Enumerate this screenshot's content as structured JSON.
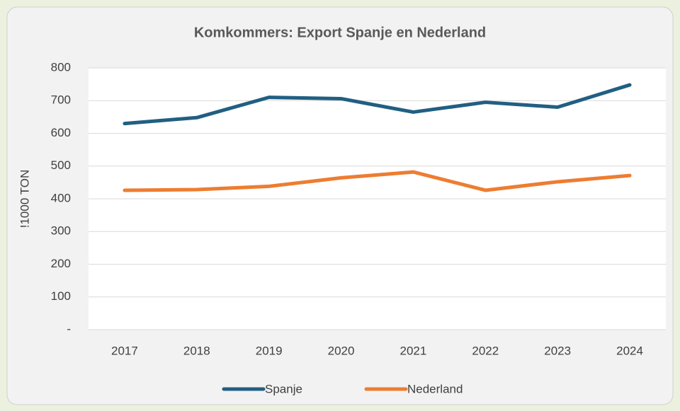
{
  "chart_data": {
    "type": "line",
    "title": "Komkommers: Export Spanje en Nederland",
    "y_label": "!1000 TON",
    "categories": [
      "2017",
      "2018",
      "2019",
      "2020",
      "2021",
      "2022",
      "2023",
      "2024"
    ],
    "series": [
      {
        "name": "Spanje",
        "color": "#215f82",
        "values": [
          630,
          648,
          710,
          706,
          665,
          695,
          680,
          748
        ]
      },
      {
        "name": "Nederland",
        "color": "#ed7d31",
        "values": [
          426,
          428,
          438,
          464,
          482,
          426,
          452,
          471
        ]
      }
    ],
    "ylim": [
      0,
      800
    ],
    "yticks": [
      {
        "value": 0,
        "label": "-"
      },
      100,
      200,
      300,
      400,
      500,
      600,
      700,
      800
    ],
    "grid": true,
    "legend": "bottom"
  }
}
